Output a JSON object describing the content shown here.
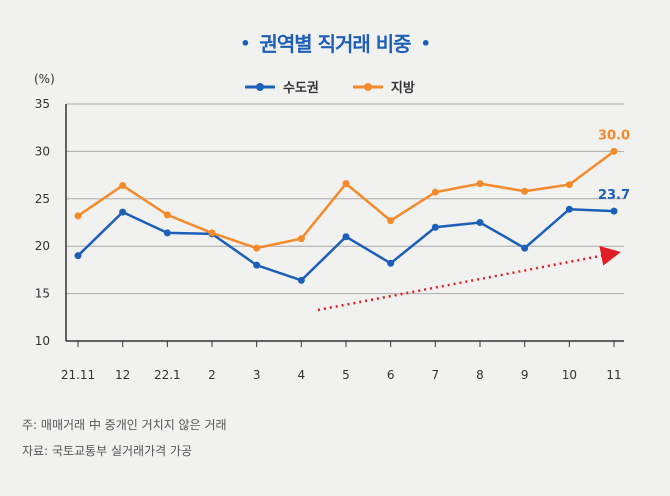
{
  "chart_data": {
    "type": "line",
    "title": "권역별 직거래 비중",
    "unit_label": "(%)",
    "categories": [
      "21.11",
      "12",
      "22.1",
      "2",
      "3",
      "4",
      "5",
      "6",
      "7",
      "8",
      "9",
      "10",
      "11"
    ],
    "series": [
      {
        "name": "수도권",
        "color": "#1c5fb8",
        "values": [
          19.0,
          23.6,
          21.4,
          21.3,
          18.0,
          16.4,
          21.0,
          18.2,
          22.0,
          22.5,
          19.8,
          23.9,
          23.7
        ],
        "end_label": "23.7"
      },
      {
        "name": "지방",
        "color": "#f58a2a",
        "values": [
          23.2,
          26.4,
          23.3,
          21.4,
          19.8,
          20.8,
          26.6,
          22.7,
          25.7,
          26.6,
          25.8,
          26.5,
          30.0
        ],
        "end_label": "30.0"
      }
    ],
    "ylim": [
      10,
      35
    ],
    "yticks": [
      10,
      15,
      20,
      25,
      30,
      35
    ],
    "grid": true,
    "legend": "top-center",
    "annotation": "red dotted upward trend arrow",
    "trend_color": "#e01e26"
  },
  "notes": {
    "note": "주: 매매거래 中 중개인 거치지 않은 거래",
    "source": "자료: 국토교통부 실거래가격 가공"
  }
}
